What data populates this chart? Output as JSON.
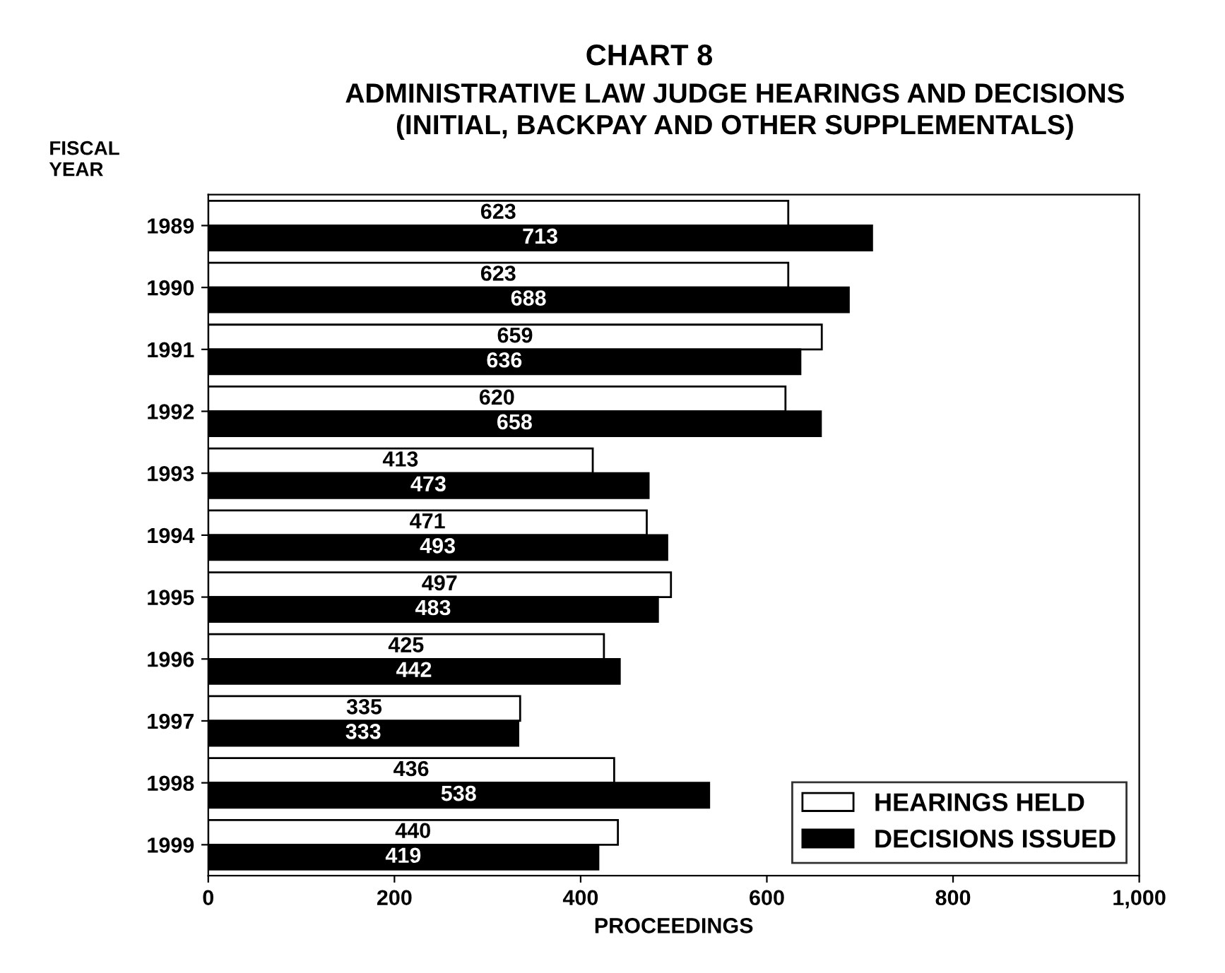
{
  "chart_data": {
    "type": "bar",
    "orientation": "horizontal",
    "title": "CHART 8",
    "subtitle": "ADMINISTRATIVE LAW JUDGE HEARINGS AND DECISIONS\n(INITIAL, BACKPAY AND OTHER SUPPLEMENTALS)",
    "xlabel": "PROCEEDINGS",
    "ylabel": "FISCAL\nYEAR",
    "categories": [
      "1989",
      "1990",
      "1991",
      "1992",
      "1993",
      "1994",
      "1995",
      "1996",
      "1997",
      "1998",
      "1999"
    ],
    "series": [
      {
        "name": "HEARINGS HELD",
        "color": "#ffffff",
        "values": [
          623,
          623,
          659,
          620,
          413,
          471,
          497,
          425,
          335,
          436,
          440
        ]
      },
      {
        "name": "DECISIONS ISSUED",
        "color": "#000000",
        "values": [
          713,
          688,
          636,
          658,
          473,
          493,
          483,
          442,
          333,
          538,
          419
        ]
      }
    ],
    "xlim": [
      0,
      1000
    ],
    "xticks": [
      0,
      200,
      400,
      600,
      800,
      {
        "value": 1000,
        "label": "1,000"
      }
    ],
    "data_labels": true,
    "legend": "bottom right",
    "grid": false
  }
}
